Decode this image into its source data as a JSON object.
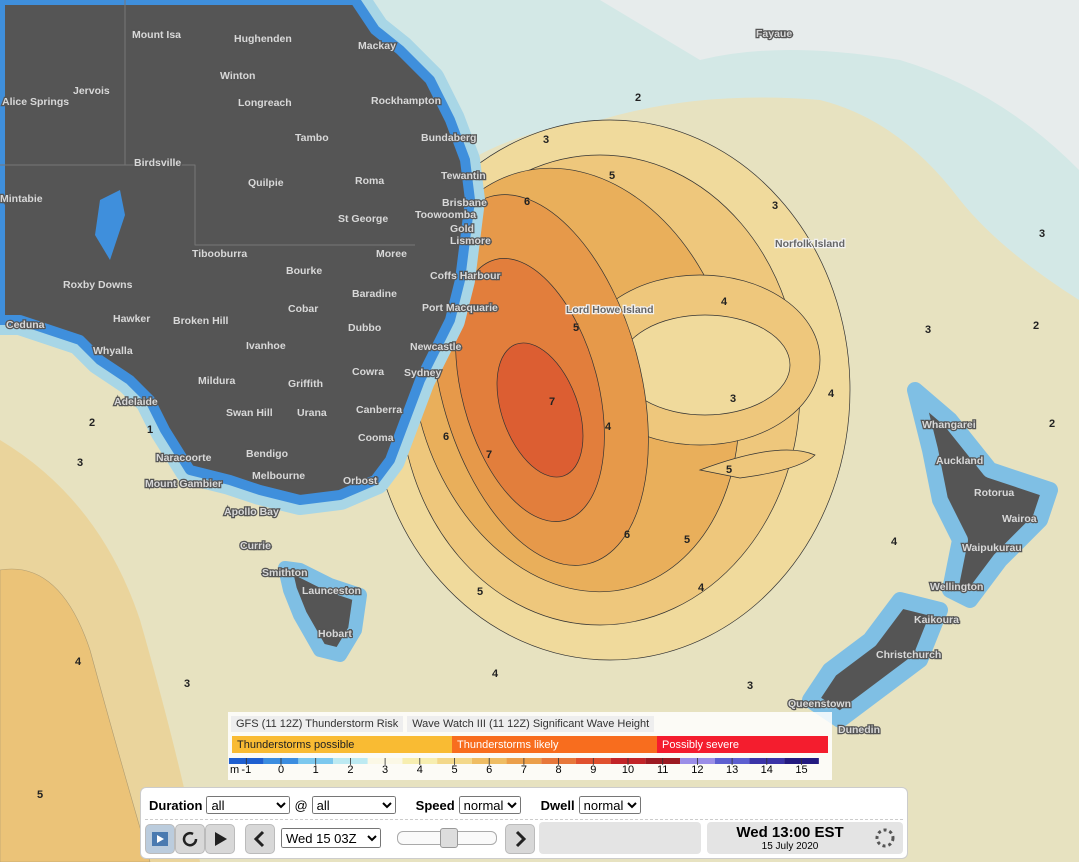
{
  "map": {
    "places": [
      "Mount Isa",
      "Hughenden",
      "Mackay",
      "Winton",
      "Jervois",
      "Alice Springs",
      "Longreach",
      "Rockhampton",
      "Tambo",
      "Bundaberg",
      "Birdsville",
      "Tewantin",
      "Quilpie",
      "Roma",
      "Brisbane",
      "Mintabie",
      "Toowoomba",
      "St George",
      "Gold",
      "Lismore",
      "Tibooburra",
      "Moree",
      "Norfolk Island",
      "Bourke",
      "Coffs Harbour",
      "Roxby Downs",
      "Baradine",
      "Cobar",
      "Port Macquarie",
      "Lord Howe Island",
      "Hawker",
      "Broken Hill",
      "Ceduna",
      "Dubbo",
      "Ivanhoe",
      "Newcastle",
      "Whyalla",
      "Sydney",
      "Cowra",
      "Mildura",
      "Griffith",
      "Adelaide",
      "Canberra",
      "Swan Hill",
      "Urana",
      "Whangarei",
      "Cooma",
      "Auckland",
      "Bendigo",
      "Naracoorte",
      "Melbourne",
      "Orbost",
      "Rotorua",
      "Mount Gambier",
      "Apollo Bay",
      "Wairoa",
      "Waipukurau",
      "Currie",
      "Smithton",
      "Wellington",
      "Launceston",
      "Kaikoura",
      "Christchurch",
      "Hobart",
      "Queenstown",
      "Dunedin",
      "Fayaue"
    ],
    "contour_labels": [
      3,
      5,
      6,
      3,
      4,
      5,
      3,
      4,
      7,
      6,
      4,
      7,
      5,
      6,
      5,
      5,
      4,
      4,
      3,
      3,
      4,
      2,
      2,
      3,
      3,
      4,
      5,
      1,
      2,
      3,
      2
    ]
  },
  "legend": {
    "titles": [
      "GFS (11 12Z) Thunderstorm Risk",
      "Wave Watch III (11 12Z) Significant Wave Height"
    ],
    "risk": [
      "Thunderstorms possible",
      "Thunderstorms likely",
      "Possibly severe"
    ],
    "risk_colors": [
      "#f9bb33",
      "#f86d1e",
      "#f41d2e"
    ],
    "unit": "m",
    "scale": [
      -1,
      0,
      1,
      2,
      3,
      4,
      5,
      6,
      7,
      8,
      9,
      10,
      11,
      12,
      13,
      14,
      15
    ],
    "scale_colors": [
      "#1f5fd0",
      "#3b8de0",
      "#7cc8ee",
      "#bdeaf2",
      "#fbf8e6",
      "#f7eeb0",
      "#f3d88a",
      "#efbd63",
      "#eb9f4a",
      "#e7773a",
      "#e0502e",
      "#c22428",
      "#9c1a22",
      "#9b8ee8",
      "#5d5fd0",
      "#3b34a8",
      "#231a80"
    ]
  },
  "controls": {
    "duration_label": "Duration",
    "duration": "all",
    "at": "@",
    "at_value": "all",
    "speed_label": "Speed",
    "speed": "normal",
    "dwell_label": "Dwell",
    "dwell": "normal",
    "time_select": "Wed 15 03Z",
    "time": "Wed 13:00 EST",
    "date": "15 July 2020"
  }
}
